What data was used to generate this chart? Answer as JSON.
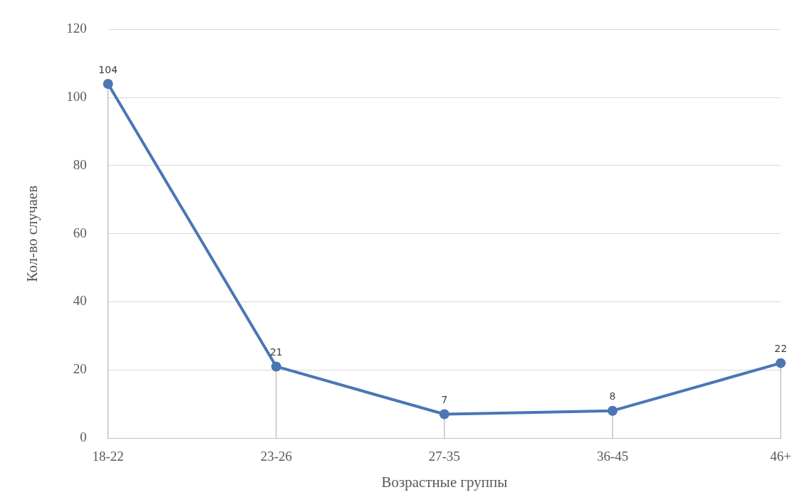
{
  "chart_data": {
    "type": "line",
    "xlabel": "Возрастные группы",
    "ylabel": "Кол-во случаев",
    "categories": [
      "18-22",
      "23-26",
      "27-35",
      "36-45",
      "46+"
    ],
    "values": [
      104,
      21,
      7,
      8,
      22
    ],
    "color": "#4a76b5",
    "ylim": [
      0,
      120
    ],
    "yticks": [
      0,
      20,
      40,
      60,
      80,
      100,
      120
    ],
    "grid": "y",
    "data_labels": true,
    "marker": "circle",
    "line_style": "solid"
  }
}
